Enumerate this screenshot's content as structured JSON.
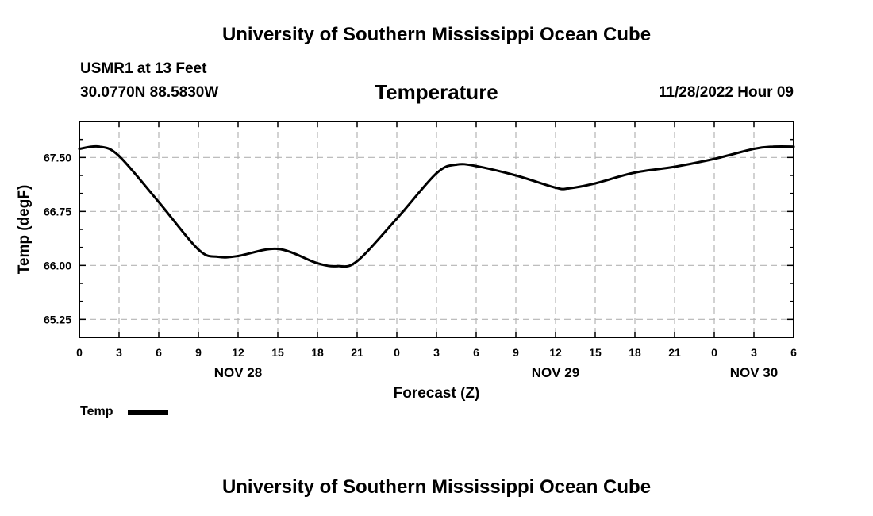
{
  "header": {
    "title": "University of Southern Mississippi Ocean Cube",
    "station": "USMR1 at 13 Feet",
    "coordinates": "30.0770N  88.5830W",
    "chart_name": "Temperature",
    "datetime": "11/28/2022 Hour 09"
  },
  "footer": {
    "title": "University of Southern Mississippi Ocean Cube"
  },
  "legend": {
    "label": "Temp",
    "color": "#000000"
  },
  "chart_data": {
    "type": "line",
    "title": "Temperature",
    "xlabel": "Forecast (Z)",
    "ylabel": "Temp (degF)",
    "grid": true,
    "xlim": [
      0,
      54
    ],
    "ylim": [
      65.0,
      68.0
    ],
    "x_ticks": [
      0,
      3,
      6,
      9,
      12,
      15,
      18,
      21,
      24,
      27,
      30,
      33,
      36,
      39,
      42,
      45,
      48,
      51,
      54
    ],
    "x_tick_labels": [
      "0",
      "3",
      "6",
      "9",
      "12",
      "15",
      "18",
      "21",
      "0",
      "3",
      "6",
      "9",
      "12",
      "15",
      "18",
      "21",
      "0",
      "3",
      "6"
    ],
    "y_ticks": [
      65.25,
      66.0,
      66.75,
      67.5
    ],
    "y_tick_labels": [
      "65.25",
      "66.00",
      "66.75",
      "67.50"
    ],
    "day_labels": [
      {
        "x": 12,
        "label": "NOV 28"
      },
      {
        "x": 36,
        "label": "NOV 29"
      },
      {
        "x": 51,
        "label": "NOV 30"
      }
    ],
    "series": [
      {
        "name": "Temp",
        "color": "#000000",
        "x": [
          0,
          1.5,
          3,
          6,
          9,
          10.5,
          12,
          15,
          18,
          19.5,
          21,
          24,
          27,
          28.5,
          30,
          33,
          36,
          37,
          39,
          42,
          45,
          48,
          51,
          52.5,
          54
        ],
        "y": [
          67.62,
          67.65,
          67.52,
          66.88,
          66.22,
          66.12,
          66.13,
          66.23,
          66.03,
          65.99,
          66.06,
          66.65,
          67.28,
          67.4,
          67.38,
          67.25,
          67.08,
          67.07,
          67.14,
          67.29,
          67.37,
          67.48,
          67.62,
          67.65,
          67.65
        ]
      }
    ]
  }
}
